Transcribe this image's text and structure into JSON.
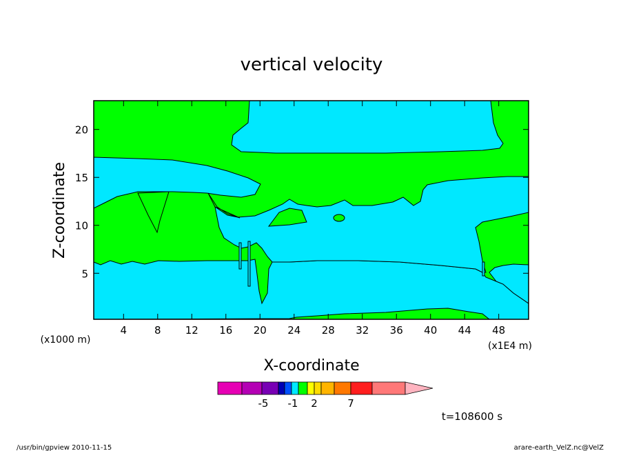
{
  "chart_data": {
    "type": "contour",
    "title": "vertical velocity",
    "xlabel": "X-coordinate",
    "ylabel": "Z-coordinate",
    "x_unit_left": "(x1000 m)",
    "x_unit_right": "(x1E4 m)",
    "xlim": [
      0.5,
      51.5
    ],
    "ylim": [
      0.2,
      23
    ],
    "x_ticks": [
      4,
      8,
      12,
      16,
      20,
      24,
      28,
      32,
      36,
      40,
      44,
      48
    ],
    "y_ticks": [
      5,
      10,
      15,
      20
    ],
    "colors": {
      "positive_small": "#00ff00",
      "negative_small": "#00e8ff",
      "contour_line": "#000000"
    },
    "colorbar": {
      "colors": [
        "#e600b4",
        "#b400b4",
        "#7800b4",
        "#0000b4",
        "#0050ff",
        "#00e8ff",
        "#00ff00",
        "#ffff00",
        "#ffdc00",
        "#ffb400",
        "#ff7800",
        "#ff1e1e",
        "#ff7878",
        "#ffb4c0"
      ],
      "labels": [
        {
          "text": "-5",
          "value": -5
        },
        {
          "text": "-1",
          "value": -1
        },
        {
          "text": "2",
          "value": 2
        },
        {
          "text": "7",
          "value": 7
        }
      ]
    },
    "time_label": "t=108600 s"
  },
  "footer": {
    "left": "/usr/bin/gpview  2010-11-15",
    "right": "arare-earth_VelZ.nc@VelZ"
  }
}
